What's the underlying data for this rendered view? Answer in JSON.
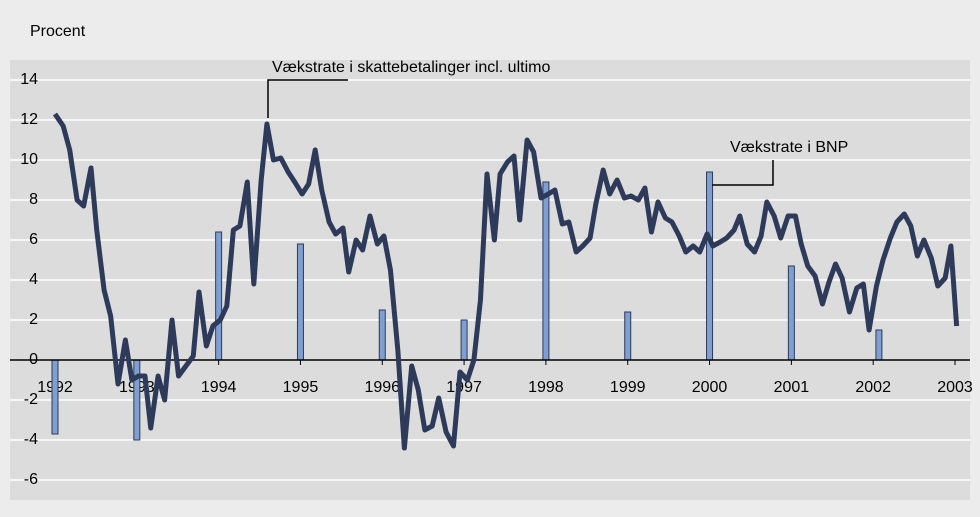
{
  "chart_data": {
    "type": "bar-line",
    "ylabel": "Procent",
    "annotations": [
      "Vækstrate i skattebetalinger incl. ultimo",
      "Vækstrate i BNP"
    ],
    "xlim": [
      1992,
      2003
    ],
    "xticks": [
      1992,
      1993,
      1994,
      1995,
      1996,
      1997,
      1998,
      1999,
      2000,
      2001,
      2002,
      2003
    ],
    "ylim": [
      -7,
      15
    ],
    "yticks": [
      -6,
      -4,
      -2,
      0,
      2,
      4,
      6,
      8,
      10,
      12,
      14
    ],
    "grid": true,
    "bars": {
      "color": "#7f9fd0",
      "x": [
        1992,
        1993,
        1994,
        1995,
        1996,
        1997,
        1998,
        1999,
        2000,
        2001,
        2002.07
      ],
      "values": [
        -3.7,
        -4.0,
        6.4,
        5.8,
        2.5,
        2.0,
        8.9,
        2.4,
        9.4,
        4.7,
        1.5
      ]
    },
    "line": {
      "color": "#2e3a5a",
      "x": [
        1992.0,
        1992.1,
        1992.18,
        1992.27,
        1992.35,
        1992.44,
        1992.51,
        1992.6,
        1992.68,
        1992.77,
        1992.86,
        1992.94,
        1993.02,
        1993.1,
        1993.17,
        1993.26,
        1993.34,
        1993.43,
        1993.51,
        1993.6,
        1993.69,
        1993.76,
        1993.85,
        1993.93,
        1994.02,
        1994.1,
        1994.18,
        1994.26,
        1994.35,
        1994.43,
        1994.52,
        1994.59,
        1994.67,
        1994.76,
        1994.85,
        1994.93,
        1995.02,
        1995.1,
        1995.18,
        1995.26,
        1995.35,
        1995.43,
        1995.52,
        1995.59,
        1995.68,
        1995.76,
        1995.85,
        1995.94,
        1996.02,
        1996.1,
        1996.19,
        1996.27,
        1996.36,
        1996.44,
        1996.52,
        1996.61,
        1996.69,
        1996.78,
        1996.87,
        1996.95,
        1997.04,
        1997.12,
        1997.2,
        1997.28,
        1997.37,
        1997.44,
        1997.53,
        1997.61,
        1997.68,
        1997.77,
        1997.85,
        1997.94,
        1998.03,
        1998.11,
        1998.2,
        1998.28,
        1998.37,
        1998.45,
        1998.54,
        1998.61,
        1998.7,
        1998.78,
        1998.87,
        1998.96,
        1999.04,
        1999.13,
        1999.21,
        1999.29,
        1999.37,
        1999.46,
        1999.54,
        1999.63,
        1999.71,
        1999.8,
        1999.88,
        1999.97,
        2000.04,
        2000.13,
        2000.21,
        2000.3,
        2000.37,
        2000.46,
        2000.55,
        2000.63,
        2000.7,
        2000.79,
        2000.87,
        2000.96,
        2001.05,
        2001.12,
        2001.2,
        2001.29,
        2001.38,
        2001.46,
        2001.54,
        2001.62,
        2001.71,
        2001.8,
        2001.88,
        2001.95,
        2002.04,
        2002.12,
        2002.21,
        2002.29,
        2002.38,
        2002.46,
        2002.54,
        2002.62,
        2002.71,
        2002.79,
        2002.88,
        2002.95,
        2003.02
      ],
      "values": [
        12.3,
        11.7,
        10.5,
        8.0,
        7.7,
        9.6,
        6.5,
        3.5,
        2.2,
        -1.2,
        1.0,
        -1.0,
        -0.8,
        -0.8,
        -3.4,
        -0.8,
        -2.0,
        2.0,
        -0.8,
        -0.3,
        0.2,
        3.4,
        0.7,
        1.7,
        2.0,
        2.7,
        6.5,
        6.7,
        8.9,
        3.8,
        9.0,
        11.8,
        10.0,
        10.1,
        9.4,
        8.9,
        8.3,
        8.8,
        10.5,
        8.5,
        6.9,
        6.3,
        6.6,
        4.4,
        6.0,
        5.5,
        7.2,
        5.8,
        6.2,
        4.5,
        0.5,
        -4.4,
        -0.3,
        -1.5,
        -3.5,
        -3.3,
        -1.9,
        -3.6,
        -4.3,
        -0.6,
        -1.0,
        0,
        3.0,
        9.3,
        6.0,
        9.3,
        9.9,
        10.2,
        7.0,
        11.0,
        10.4,
        8.1,
        8.3,
        8.5,
        6.8,
        6.9,
        5.4,
        5.7,
        6.1,
        7.8,
        9.5,
        8.3,
        9.0,
        8.1,
        8.2,
        8.0,
        8.6,
        6.4,
        7.9,
        7.1,
        6.9,
        6.2,
        5.4,
        5.7,
        5.4,
        6.3,
        5.7,
        5.9,
        6.1,
        6.5,
        7.2,
        5.8,
        5.4,
        6.2,
        7.9,
        7.2,
        6.1,
        7.2,
        7.2,
        5.8,
        4.7,
        4.2,
        2.8,
        3.9,
        4.8,
        4.1,
        2.4,
        3.6,
        3.8,
        1.5,
        3.7,
        5.0,
        6.1,
        6.9,
        7.3,
        6.7,
        5.2,
        6.0,
        5.1,
        3.7,
        4.1,
        5.7,
        1.7
      ]
    }
  }
}
